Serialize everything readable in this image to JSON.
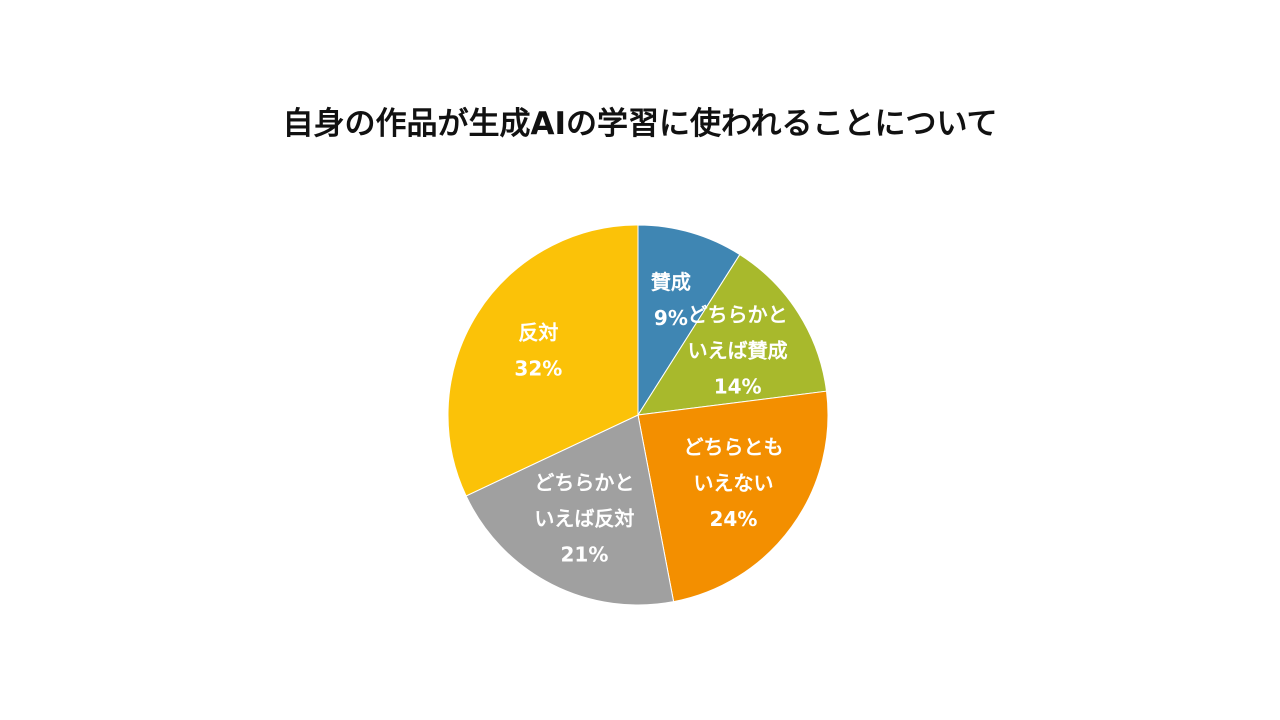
{
  "chart_data": {
    "type": "pie",
    "title": "自身の作品が生成AIの学習に使われることについて",
    "slices": [
      {
        "name": "賛成",
        "label_lines": [
          "賛成"
        ],
        "value": 9,
        "value_label": "9%",
        "color": "#3F86B3"
      },
      {
        "name": "どちらかといえば賛成",
        "label_lines": [
          "どちらかと",
          "いえば賛成"
        ],
        "value": 14,
        "value_label": "14%",
        "color": "#A8B92C"
      },
      {
        "name": "どちらともいえない",
        "label_lines": [
          "どちらとも",
          "いえない"
        ],
        "value": 24,
        "value_label": "24%",
        "color": "#F38F00"
      },
      {
        "name": "どちらかといえば反対",
        "label_lines": [
          "どちらかと",
          "いえば反対"
        ],
        "value": 21,
        "value_label": "21%",
        "color": "#A0A0A0"
      },
      {
        "name": "反対",
        "label_lines": [
          "反対"
        ],
        "value": 32,
        "value_label": "32%",
        "color": "#FBC208"
      }
    ],
    "start_angle_deg": 0,
    "direction": "clockwise",
    "legend": "none"
  }
}
